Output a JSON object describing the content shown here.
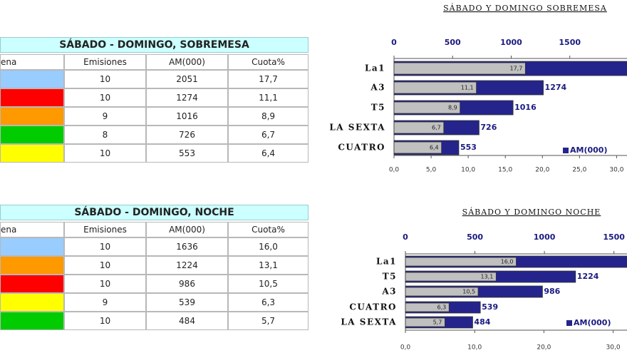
{
  "tables": [
    {
      "title": "SÁBADO - DOMINGO, SOBREMESA",
      "header": [
        "ena",
        "Emisiones",
        "AM(000)",
        "Cuota%"
      ],
      "rows": [
        {
          "color": "#99ccff",
          "cells": [
            "10",
            "2051",
            "17,7"
          ]
        },
        {
          "color": "#ff0000",
          "cells": [
            "10",
            "1274",
            "11,1"
          ]
        },
        {
          "color": "#ff9900",
          "cells": [
            "9",
            "1016",
            "8,9"
          ]
        },
        {
          "color": "#00cc00",
          "cells": [
            "8",
            "726",
            "6,7"
          ]
        },
        {
          "color": "#ffff00",
          "cells": [
            "10",
            "553",
            "6,4"
          ]
        }
      ]
    },
    {
      "title": "SÁBADO - DOMINGO, NOCHE",
      "header": [
        "ena",
        "Emisiones",
        "AM(000)",
        "Cuota%"
      ],
      "rows": [
        {
          "color": "#99ccff",
          "cells": [
            "10",
            "1636",
            "16,0"
          ]
        },
        {
          "color": "#ff9900",
          "cells": [
            "10",
            "1224",
            "13,1"
          ]
        },
        {
          "color": "#ff0000",
          "cells": [
            "10",
            "986",
            "10,5"
          ]
        },
        {
          "color": "#ffff00",
          "cells": [
            "9",
            "539",
            "6,3"
          ]
        },
        {
          "color": "#00cc00",
          "cells": [
            "10",
            "484",
            "5,7"
          ]
        }
      ]
    }
  ],
  "chart_data": [
    {
      "type": "bar",
      "orientation": "horizontal",
      "title": "SÁBADO Y DOMINGO SOBREMESA",
      "categories": [
        "La1",
        "A3",
        "T5",
        "LA SEXTA",
        "CUATRO"
      ],
      "series": [
        {
          "name": "AM(000)",
          "color": "#24248c",
          "values": [
            2051,
            1274,
            1016,
            726,
            553
          ]
        },
        {
          "color": "#c0c0c0",
          "axis": "x2",
          "values": [
            17.7,
            11.1,
            8.9,
            6.7,
            6.4
          ],
          "value_labels": [
            "17,7",
            "11,1",
            "8,9",
            "6,7",
            "6,4"
          ]
        }
      ],
      "xlim": [
        0,
        1988
      ],
      "xticks": [
        0,
        500,
        1000,
        1500
      ],
      "x2lim": [
        0,
        31.4
      ],
      "x2ticks": [
        {
          "value": 0,
          "label": "0,0"
        },
        {
          "value": 5,
          "label": "5,0"
        },
        {
          "value": 10,
          "label": "10,0"
        },
        {
          "value": 15,
          "label": "15,0"
        },
        {
          "value": 20,
          "label": "20,0"
        },
        {
          "value": 25,
          "label": "25,0"
        },
        {
          "value": 30,
          "label": "30,0"
        }
      ],
      "legend": "bottom-right"
    },
    {
      "type": "bar",
      "orientation": "horizontal",
      "title": "SÁBADO Y DOMINGO NOCHE",
      "categories": [
        "La1",
        "T5",
        "A3",
        "CUATRO",
        "LA SEXTA"
      ],
      "series": [
        {
          "name": "AM(000)",
          "color": "#24248c",
          "values": [
            1636,
            1224,
            986,
            539,
            484
          ]
        },
        {
          "color": "#c0c0c0",
          "axis": "x2",
          "values": [
            16.0,
            13.1,
            10.5,
            6.3,
            5.7
          ],
          "value_labels": [
            "16,0",
            "13,1",
            "10,5",
            "6,3",
            "5,7"
          ]
        }
      ],
      "xlim": [
        0,
        1594
      ],
      "xticks": [
        0,
        500,
        1000,
        1500
      ],
      "x2lim": [
        0,
        32
      ],
      "x2ticks": [
        {
          "value": 0,
          "label": "0,0"
        },
        {
          "value": 10,
          "label": "10,0"
        },
        {
          "value": 20,
          "label": "20,0"
        },
        {
          "value": 30,
          "label": "30,0"
        }
      ],
      "legend": "bottom-right"
    }
  ]
}
